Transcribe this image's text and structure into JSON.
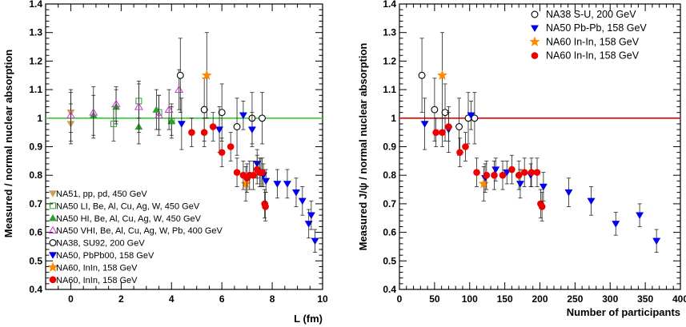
{
  "colors": {
    "na51": "#c8a05a",
    "na50li": "#2ca02c",
    "na50hi": "#2ca02c",
    "na50vhi": "#cc33cc",
    "na38": "#000000",
    "na50pb": "#0000ee",
    "na60star": "#ff8800",
    "na60": "#ee0000",
    "refline_left": "#33cc33",
    "refline_right": "#ee0000",
    "errbar": "#222222"
  },
  "chart_data": [
    {
      "type": "scatter",
      "xlabel": "L (fm)",
      "ylabel": "Measured / normal nuclear absorption",
      "xlim": [
        -1,
        10
      ],
      "ylim": [
        0.4,
        1.4
      ],
      "xticks": [
        "0",
        "2",
        "4",
        "6",
        "8",
        "10"
      ],
      "yticks": [
        "0.4",
        "0.5",
        "0.6",
        "0.7",
        "0.8",
        "0.9",
        "1",
        "1.1",
        "1.2",
        "1.3",
        "1.4"
      ],
      "reference_line": 1.0,
      "series": [
        {
          "name": "NA51, pp, pd, 450 GeV",
          "marker": "tri-down-filled",
          "color": "na51",
          "points": [
            [
              0.0,
              0.98,
              0.07
            ],
            [
              0.0,
              1.02,
              0.07
            ]
          ]
        },
        {
          "name": "NA50 LI, Be, Al, Cu, Ag, W, 450 GeV",
          "marker": "square-open",
          "color": "na50li",
          "points": [
            [
              1.7,
              0.98,
              0.06
            ],
            [
              2.7,
              1.06,
              0.06
            ],
            [
              3.5,
              1.02,
              0.06
            ],
            [
              4.0,
              0.99,
              0.05
            ]
          ]
        },
        {
          "name": "NA50 HI, Be, Al, Cu, Ag, W, 450 GeV",
          "marker": "tri-up-filled",
          "color": "na50hi",
          "points": [
            [
              0.9,
              1.01,
              0.07
            ],
            [
              1.8,
              1.04,
              0.06
            ],
            [
              2.7,
              0.97,
              0.06
            ],
            [
              3.4,
              1.03,
              0.07
            ],
            [
              4.0,
              0.99,
              0.06
            ]
          ]
        },
        {
          "name": "NA50 VHI, Be, Al, Cu, Ag, W, Pb, 400 GeV",
          "marker": "tri-up-open",
          "color": "na50vhi",
          "points": [
            [
              0.0,
              1.01,
              0.09
            ],
            [
              0.9,
              1.02,
              0.09
            ],
            [
              1.8,
              1.05,
              0.06
            ],
            [
              2.7,
              1.04,
              0.09
            ],
            [
              3.5,
              1.01,
              0.07
            ],
            [
              3.9,
              1.03,
              0.07
            ],
            [
              4.3,
              1.1,
              0.07
            ]
          ]
        },
        {
          "name": "NA38, SU92, 200 GeV",
          "marker": "circle-open",
          "color": "na38",
          "points": [
            [
              4.35,
              1.15,
              0.13
            ],
            [
              5.3,
              1.03,
              0.11
            ],
            [
              6.0,
              1.02,
              0.1
            ],
            [
              6.6,
              0.97,
              0.1
            ],
            [
              7.2,
              1.0,
              0.09
            ],
            [
              7.6,
              1.0,
              0.09
            ]
          ]
        },
        {
          "name": "NA50, PbPb00, 158 GeV",
          "marker": "tri-down-filled",
          "color": "na50pb",
          "points": [
            [
              4.4,
              0.98,
              0.09
            ],
            [
              5.9,
              0.96,
              0.08
            ],
            [
              6.85,
              1.01,
              0.05
            ],
            [
              7.2,
              0.96,
              0.06
            ],
            [
              7.4,
              0.84,
              0.05
            ],
            [
              7.55,
              0.81,
              0.05
            ],
            [
              7.65,
              0.8,
              0.04
            ],
            [
              7.75,
              0.78,
              0.04
            ],
            [
              8.2,
              0.77,
              0.05
            ],
            [
              8.6,
              0.77,
              0.05
            ],
            [
              8.95,
              0.74,
              0.05
            ],
            [
              9.2,
              0.71,
              0.05
            ],
            [
              9.45,
              0.63,
              0.05
            ],
            [
              9.55,
              0.66,
              0.05
            ],
            [
              9.7,
              0.57,
              0.04
            ]
          ]
        },
        {
          "name": "NA60, InIn, 158 GeV",
          "marker": "star",
          "color": "na60star",
          "points": [
            [
              5.4,
              1.15,
              0.15
            ],
            [
              6.95,
              0.77,
              0.06
            ]
          ]
        },
        {
          "name": "NA60, InIn, 158 GeV",
          "marker": "circle-filled",
          "color": "na60",
          "points": [
            [
              4.8,
              0.95,
              0.05
            ],
            [
              5.3,
              0.95,
              0.05
            ],
            [
              5.65,
              0.97,
              0.05
            ],
            [
              6.0,
              0.88,
              0.05
            ],
            [
              6.35,
              0.9,
              0.05
            ],
            [
              6.6,
              0.81,
              0.05
            ],
            [
              6.85,
              0.8,
              0.05
            ],
            [
              7.0,
              0.79,
              0.05
            ],
            [
              7.1,
              0.8,
              0.05
            ],
            [
              7.25,
              0.8,
              0.05
            ],
            [
              7.4,
              0.82,
              0.05
            ],
            [
              7.5,
              0.81,
              0.05
            ],
            [
              7.6,
              0.81,
              0.05
            ],
            [
              7.7,
              0.7,
              0.05
            ],
            [
              7.73,
              0.69,
              0.05
            ]
          ]
        }
      ],
      "legend": {
        "position": "bottom-left"
      }
    },
    {
      "type": "scatter",
      "xlabel": "Number of participants",
      "ylabel": "Measured J/ψ / normal nuclear absorption",
      "xlim": [
        0,
        400
      ],
      "ylim": [
        0.4,
        1.4
      ],
      "xticks": [
        "0",
        "50",
        "100",
        "150",
        "200",
        "250",
        "300",
        "350",
        "400"
      ],
      "yticks": [
        "0.4",
        "0.5",
        "0.6",
        "0.7",
        "0.8",
        "0.9",
        "1",
        "1.1",
        "1.2",
        "1.3",
        "1.4"
      ],
      "reference_line": 1.0,
      "series": [
        {
          "name": "NA38 S-U, 200 GeV",
          "marker": "circle-open",
          "color": "na38",
          "points": [
            [
              32,
              1.15,
              0.13
            ],
            [
              50,
              1.03,
              0.11
            ],
            [
              65,
              1.02,
              0.1
            ],
            [
              85,
              0.97,
              0.1
            ],
            [
              98,
              1.0,
              0.09
            ],
            [
              107,
              1.0,
              0.09
            ]
          ]
        },
        {
          "name": "NA50 Pb-Pb, 158 GeV",
          "marker": "tri-down-filled",
          "color": "na50pb",
          "points": [
            [
              36,
              0.98,
              0.09
            ],
            [
              70,
              0.96,
              0.08
            ],
            [
              102,
              1.01,
              0.05
            ],
            [
              122,
              0.79,
              0.05
            ],
            [
              137,
              0.82,
              0.04
            ],
            [
              153,
              0.81,
              0.04
            ],
            [
              172,
              0.77,
              0.05
            ],
            [
              187,
              0.8,
              0.04
            ],
            [
              205,
              0.76,
              0.05
            ],
            [
              241,
              0.74,
              0.05
            ],
            [
              273,
              0.71,
              0.05
            ],
            [
              308,
              0.63,
              0.04
            ],
            [
              342,
              0.66,
              0.04
            ],
            [
              366,
              0.57,
              0.04
            ]
          ]
        },
        {
          "name": "NA60 In-In, 158 GeV",
          "marker": "star",
          "color": "na60star",
          "points": [
            [
              61,
              1.15,
              0.15
            ],
            [
              120,
              0.77,
              0.06
            ]
          ]
        },
        {
          "name": "NA60 In-In, 158 GeV",
          "marker": "circle-filled",
          "color": "na60",
          "points": [
            [
              52,
              0.95,
              0.05
            ],
            [
              61,
              0.95,
              0.05
            ],
            [
              70,
              0.97,
              0.05
            ],
            [
              86,
              0.88,
              0.05
            ],
            [
              94,
              0.9,
              0.05
            ],
            [
              110,
              0.81,
              0.05
            ],
            [
              124,
              0.8,
              0.05
            ],
            [
              135,
              0.8,
              0.05
            ],
            [
              147,
              0.8,
              0.05
            ],
            [
              160,
              0.82,
              0.05
            ],
            [
              170,
              0.8,
              0.05
            ],
            [
              178,
              0.81,
              0.05
            ],
            [
              188,
              0.81,
              0.05
            ],
            [
              196,
              0.81,
              0.05
            ],
            [
              201,
              0.7,
              0.05
            ],
            [
              203,
              0.69,
              0.05
            ]
          ]
        }
      ],
      "legend": {
        "position": "top-right"
      }
    }
  ]
}
